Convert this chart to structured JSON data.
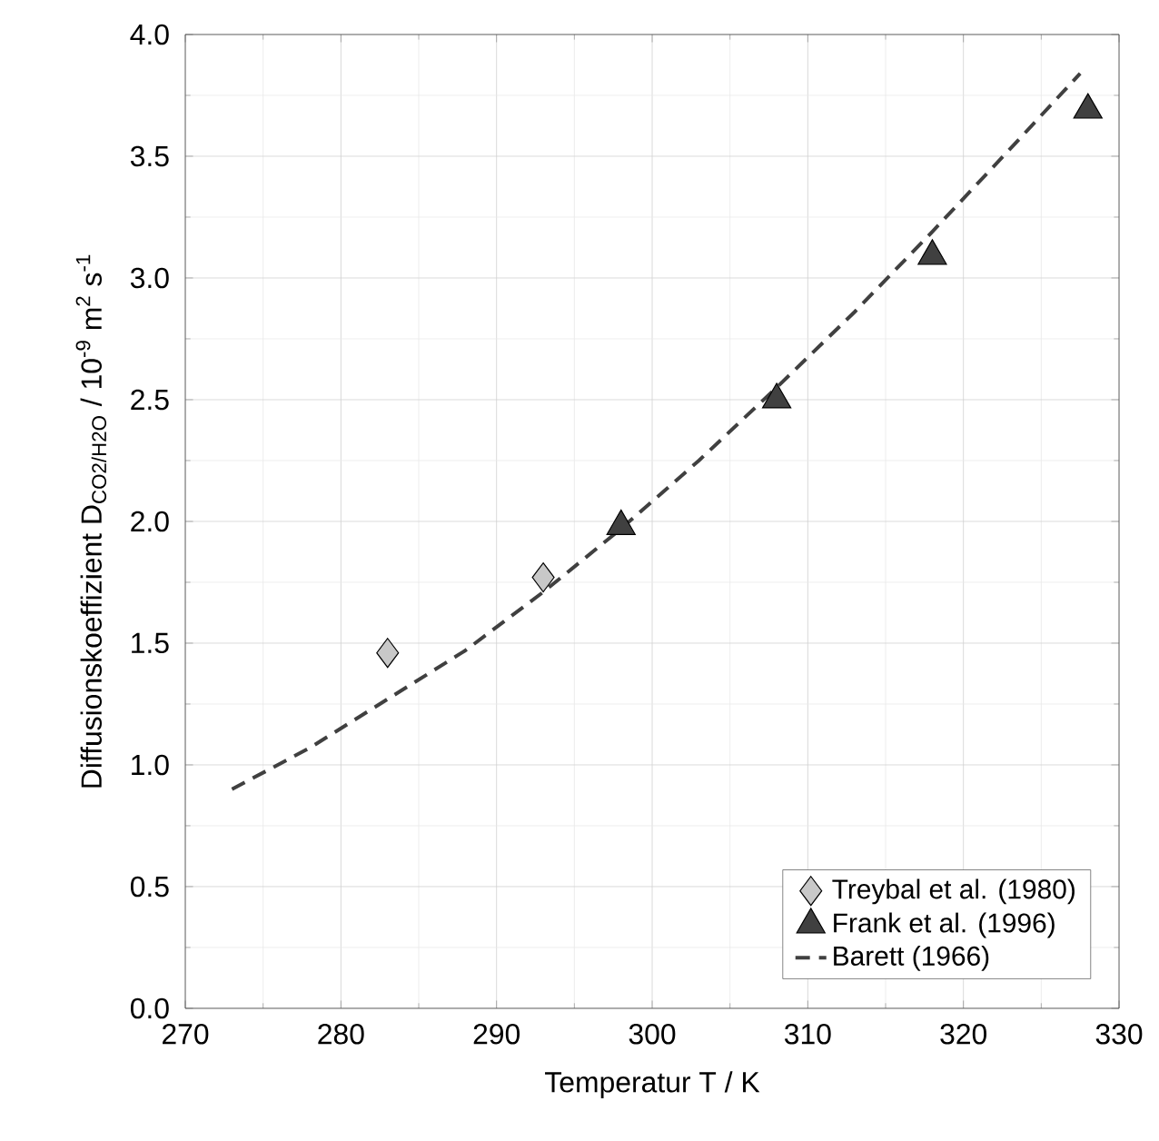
{
  "chart_data": {
    "type": "scatter",
    "xlabel": "Temperatur  T / K",
    "ylabel": "Diffusionskoeffizient D$_{CO2/H2O}$ / 10$^{-9}$ m$^{2}$ s$^{-1}$",
    "xlim": [
      270,
      330
    ],
    "ylim": [
      0,
      4.0
    ],
    "xticks": [
      270,
      280,
      290,
      300,
      310,
      320,
      330
    ],
    "yticks": [
      {
        "value": 0,
        "label": "0.0"
      },
      {
        "value": 0.5,
        "label": "0.5"
      },
      {
        "value": 1,
        "label": "1.0"
      },
      {
        "value": 1.5,
        "label": "1.5"
      },
      {
        "value": 2,
        "label": "2.0"
      },
      {
        "value": 2.5,
        "label": "2.5"
      },
      {
        "value": 3,
        "label": "3.0"
      },
      {
        "value": 3.5,
        "label": "3.5"
      },
      {
        "value": 4,
        "label": "4.0"
      }
    ],
    "grid": true,
    "legend": "bottom right",
    "series": [
      {
        "name": "Treybal et al. (1980)",
        "marker": "diamond",
        "color": "#c8c8c8",
        "x": [
          283,
          293
        ],
        "values": [
          1.46,
          1.77
        ]
      },
      {
        "name": "Frank et al. (1996)",
        "marker": "triangle",
        "color": "#404040",
        "x": [
          298,
          308,
          318,
          328
        ],
        "values": [
          1.98,
          2.5,
          3.09,
          3.69
        ]
      },
      {
        "name": "Barett (1966)",
        "type": "line",
        "marker": "none",
        "line_style": "dashed",
        "color": "#404040",
        "x": [
          273,
          278,
          283,
          288,
          293,
          298,
          303,
          308,
          313,
          318,
          323,
          327.5
        ],
        "values": [
          0.9,
          1.07,
          1.27,
          1.47,
          1.71,
          1.97,
          2.25,
          2.55,
          2.86,
          3.19,
          3.53,
          3.84
        ]
      }
    ]
  }
}
